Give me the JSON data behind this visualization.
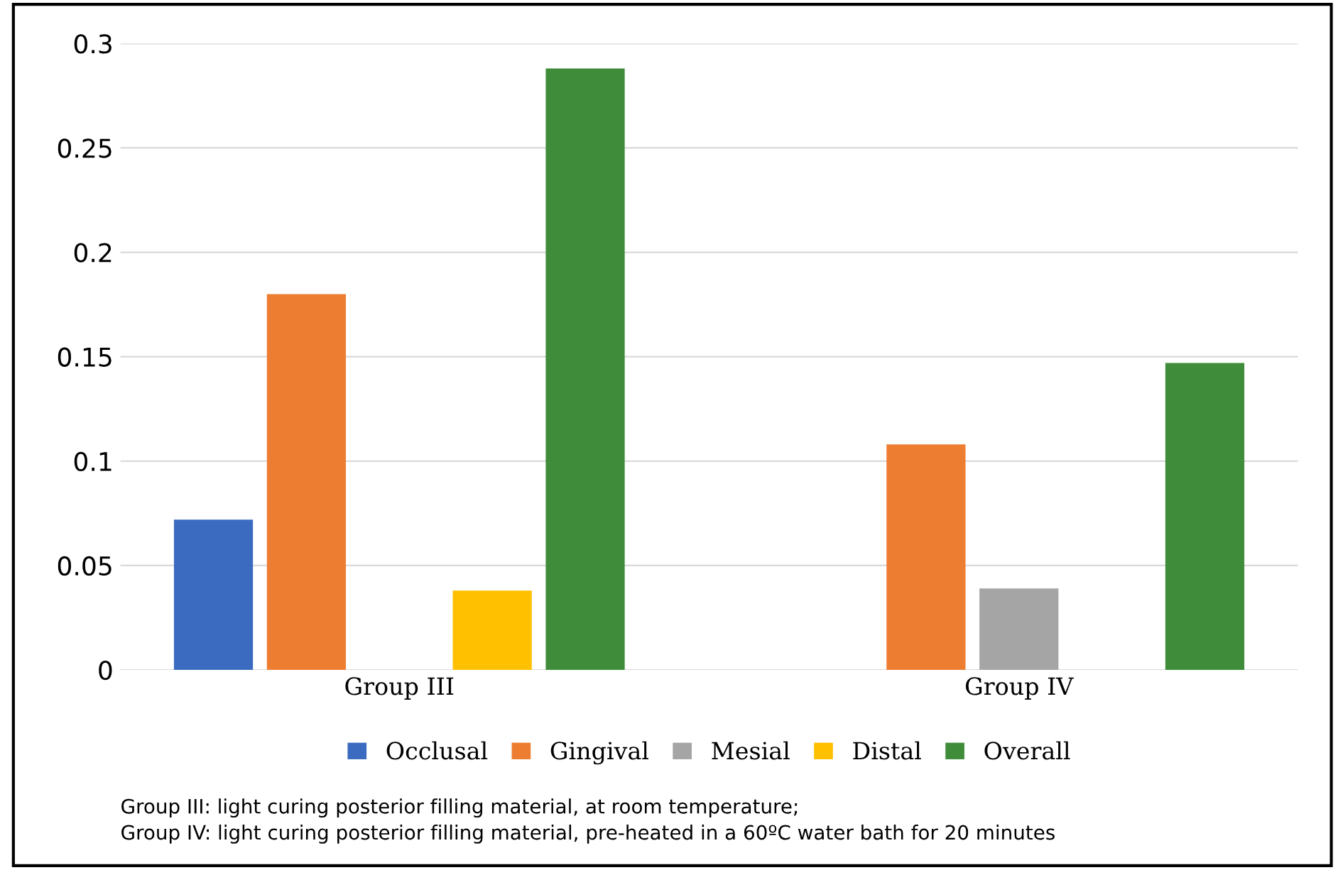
{
  "chart_data": {
    "type": "bar",
    "categories": [
      "Group III",
      "Group IV"
    ],
    "series": [
      {
        "name": "Occlusal",
        "color": "#3a6bc0",
        "values": [
          0.072,
          0
        ]
      },
      {
        "name": "Gingival",
        "color": "#ed7d31",
        "values": [
          0.18,
          0.108
        ]
      },
      {
        "name": "Mesial",
        "color": "#a5a5a5",
        "values": [
          0,
          0.039
        ]
      },
      {
        "name": "Distal",
        "color": "#ffc000",
        "values": [
          0.038,
          0
        ]
      },
      {
        "name": "Overall",
        "color": "#3f8d3a",
        "values": [
          0.288,
          0.147
        ]
      }
    ],
    "ylim": [
      0,
      0.3
    ],
    "yticks": [
      0,
      0.05,
      0.1,
      0.15,
      0.2,
      0.25,
      0.3
    ],
    "grid": "y",
    "legend": "bottom",
    "annotations": [
      "Group III: light curing posterior filling material, at room temperature;",
      "Group IV: light curing posterior filling material, pre-heated in a 60ºC water bath for 20 minutes"
    ]
  }
}
